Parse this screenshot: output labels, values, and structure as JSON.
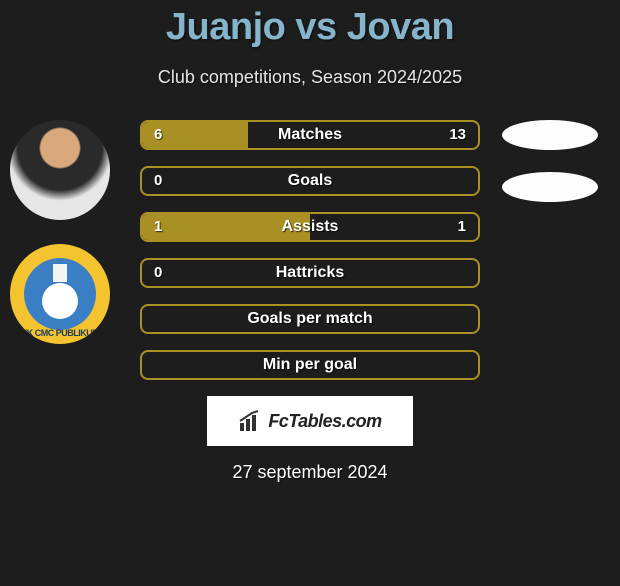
{
  "title": {
    "text": "Juanjo vs Jovan",
    "color": "#86b5cb",
    "fontsize": 38
  },
  "subtitle": {
    "text": "Club competitions, Season 2024/2025",
    "color": "#e6e6e6",
    "fontsize": 18
  },
  "colors": {
    "background": "#1d1d1d",
    "bar_border": "#a99025",
    "bar_fill": "#a99025",
    "ellipse_fill": "#fdfdfd"
  },
  "bars": [
    {
      "label": "Matches",
      "left": "6",
      "right": "13",
      "fill_pct": 31.6
    },
    {
      "label": "Goals",
      "left": "0",
      "right": "",
      "fill_pct": 0
    },
    {
      "label": "Assists",
      "left": "1",
      "right": "1",
      "fill_pct": 50
    },
    {
      "label": "Hattricks",
      "left": "0",
      "right": "",
      "fill_pct": 0
    },
    {
      "label": "Goals per match",
      "left": "",
      "right": "",
      "fill_pct": 0
    },
    {
      "label": "Min per goal",
      "left": "",
      "right": "",
      "fill_pct": 0
    }
  ],
  "badge": {
    "ring_color": "#f4c430",
    "inner_color": "#3a7fc4",
    "text": "NK CMC PUBLIKUM"
  },
  "logo": {
    "text": "FcTables.com"
  },
  "date": "27 september 2024"
}
